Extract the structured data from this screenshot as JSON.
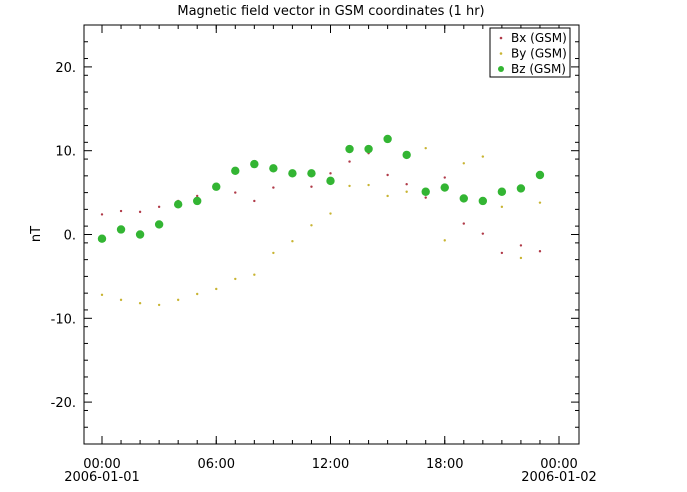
{
  "chart_data": {
    "type": "scatter",
    "title": "Magnetic field vector in GSM coordinates (1 hr)",
    "xlabel": "",
    "ylabel": "nT",
    "xlim": [
      0,
      24
    ],
    "ylim": [
      -25,
      25
    ],
    "x_ticks": [
      {
        "x": 0,
        "time": "00:00",
        "date": "2006-01-01"
      },
      {
        "x": 6,
        "time": "06:00",
        "date": ""
      },
      {
        "x": 12,
        "time": "12:00",
        "date": ""
      },
      {
        "x": 18,
        "time": "18:00",
        "date": ""
      },
      {
        "x": 24,
        "time": "00:00",
        "date": "2006-01-02"
      }
    ],
    "y_ticks": [
      {
        "value": 20,
        "label": "20."
      },
      {
        "value": 10,
        "label": "10."
      },
      {
        "value": 0,
        "label": "0."
      },
      {
        "value": -10,
        "label": "-10."
      },
      {
        "value": -20,
        "label": "-20."
      }
    ],
    "legend_position": "top-right",
    "x": [
      0,
      1,
      2,
      3,
      4,
      5,
      6,
      7,
      8,
      9,
      10,
      11,
      12,
      13,
      14,
      15,
      16,
      17,
      18,
      19,
      20,
      21,
      22,
      23
    ],
    "series": [
      {
        "name": "Bx (GSM)",
        "color": "#b03a48",
        "marker": "small",
        "values": [
          2.4,
          2.8,
          2.7,
          3.3,
          4.0,
          4.6,
          null,
          5.0,
          4.0,
          5.6,
          7.0,
          5.7,
          7.3,
          8.7,
          9.7,
          7.1,
          6.0,
          4.4,
          6.8,
          1.3,
          0.1,
          -2.2,
          -1.3,
          -2.0
        ]
      },
      {
        "name": "By (GSM)",
        "color": "#c8b432",
        "marker": "small",
        "values": [
          -7.2,
          -7.8,
          -8.2,
          -8.4,
          -7.8,
          -7.1,
          -6.5,
          -5.3,
          -4.8,
          -2.2,
          -0.8,
          1.1,
          2.5,
          5.8,
          5.9,
          4.6,
          5.1,
          10.3,
          -0.7,
          8.5,
          9.3,
          3.3,
          -2.8,
          3.8
        ]
      },
      {
        "name": "Bz (GSM)",
        "color": "#33b533",
        "marker": "large",
        "values": [
          -0.5,
          0.6,
          0.0,
          1.2,
          3.6,
          4.0,
          5.7,
          7.6,
          8.4,
          7.9,
          7.3,
          7.3,
          6.4,
          10.2,
          10.2,
          11.4,
          9.5,
          5.1,
          5.6,
          4.3,
          4.0,
          5.1,
          5.5,
          7.1
        ]
      }
    ]
  }
}
